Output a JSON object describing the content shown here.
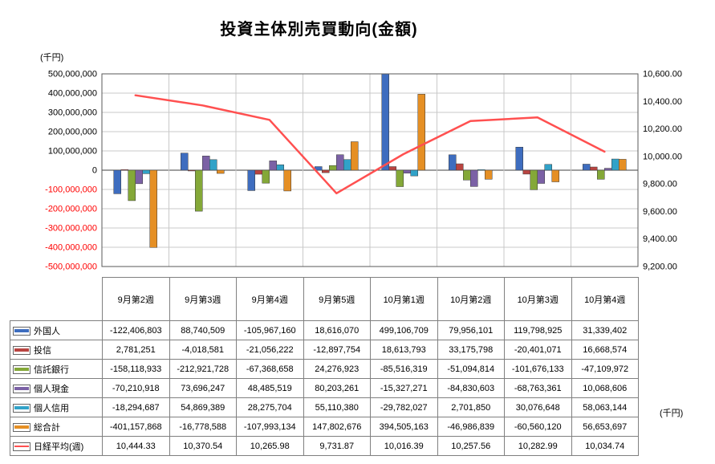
{
  "title": "投資主体別売買動向(金額)",
  "chart_data": {
    "type": "bar+line",
    "categories": [
      "9月第2週",
      "9月第3週",
      "9月第4週",
      "9月第5週",
      "10月第1週",
      "10月第2週",
      "10月第3週",
      "10月第4週"
    ],
    "series": [
      {
        "key": "foreigners",
        "name": "外国人",
        "chart": "bar",
        "color": "#3e6dbf",
        "values": [
          -122406803,
          88740509,
          -105967160,
          18616070,
          499106709,
          79956101,
          119798925,
          31339402
        ]
      },
      {
        "key": "investment-trusts",
        "name": "投信",
        "chart": "bar",
        "color": "#b94441",
        "values": [
          2781251,
          -4018581,
          -21056222,
          -12897754,
          18613793,
          33175798,
          -20401071,
          16668574
        ]
      },
      {
        "key": "trust-banks",
        "name": "信託銀行",
        "chart": "bar",
        "color": "#84a838",
        "values": [
          -158118933,
          -212921728,
          -67368658,
          24276923,
          -85516319,
          -51094814,
          -101676133,
          -47109972
        ]
      },
      {
        "key": "individual-cash",
        "name": "個人現金",
        "chart": "bar",
        "color": "#7b61a5",
        "values": [
          -70210918,
          73696247,
          48485519,
          80203261,
          -15327271,
          -84830603,
          -68763361,
          10068606
        ]
      },
      {
        "key": "individual-margin",
        "name": "個人信用",
        "chart": "bar",
        "color": "#31a2c8",
        "values": [
          -18294687,
          54869389,
          28275704,
          55110380,
          -29782027,
          2701850,
          30076648,
          58063144
        ]
      },
      {
        "key": "grand-total",
        "name": "総合計",
        "chart": "bar",
        "color": "#e58f24",
        "values": [
          -401157868,
          -16778588,
          -107993134,
          147802676,
          394505163,
          -46986839,
          -60560120,
          56653697
        ]
      },
      {
        "key": "nikkei-average",
        "name": "日経平均(週)",
        "chart": "line",
        "color": "#ff5050",
        "values": [
          10444.33,
          10370.54,
          10265.98,
          9731.87,
          10016.39,
          10257.56,
          10282.99,
          10034.74
        ]
      }
    ],
    "left_axis": {
      "unit": "(千円)",
      "min": -500000000,
      "max": 500000000,
      "step": 100000000,
      "tick_labels": [
        "500,000,000",
        "400,000,000",
        "300,000,000",
        "200,000,000",
        "100,000,000",
        "0",
        "-100,000,000",
        "-200,000,000",
        "-300,000,000",
        "-400,000,000",
        "-500,000,000"
      ],
      "negative_tick_color": "#ff0000"
    },
    "right_axis": {
      "unit": "(千円)",
      "min": 9200,
      "max": 10600,
      "step": 200,
      "tick_labels": [
        "10,600.00",
        "10,400.00",
        "10,200.00",
        "10,000.00",
        "9,800.00",
        "9,600.00",
        "9,400.00",
        "9,200.00"
      ]
    },
    "grid": true,
    "legend_position": "table-left"
  }
}
